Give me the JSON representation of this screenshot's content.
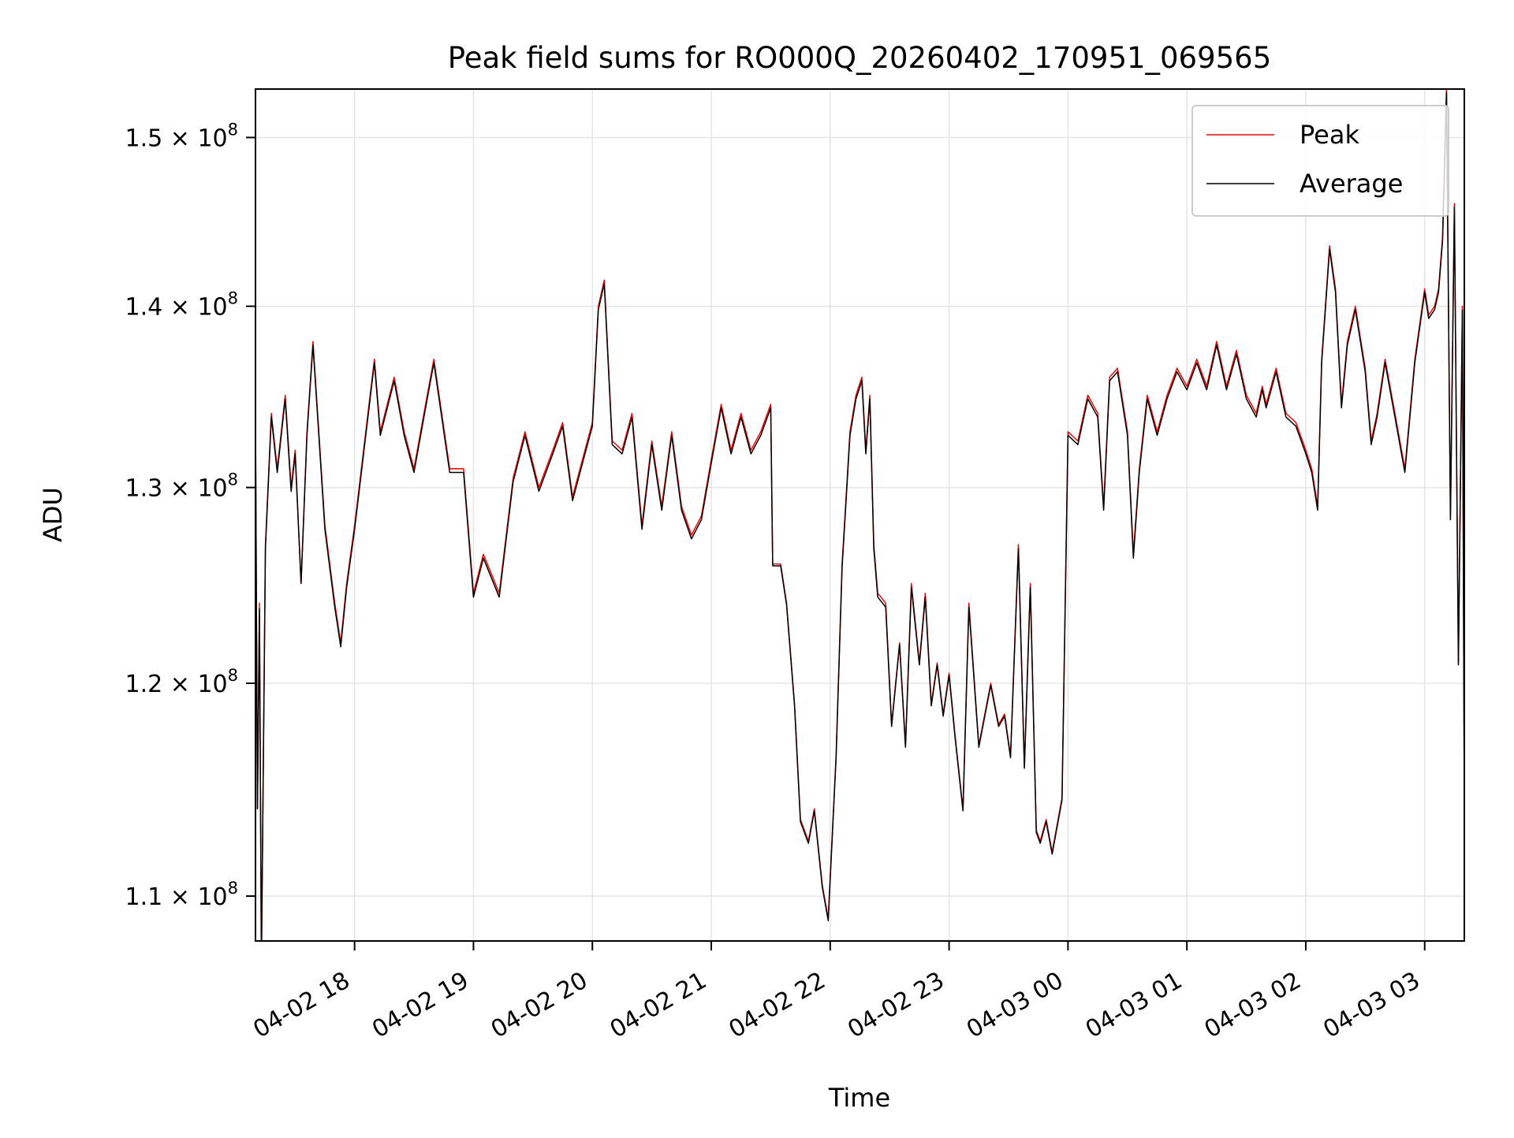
{
  "chart_data": {
    "type": "line",
    "title": "Peak field sums for RO000Q_20260402_170951_069565",
    "xlabel": "Time",
    "ylabel": "ADU",
    "y_scale": "log",
    "grid": true,
    "legend_position": "top-right",
    "xlim": [
      "2026-04-02 17:10",
      "2026-04-03 03:20"
    ],
    "ylim": [
      108000000,
      153000000
    ],
    "x_ticks": [
      {
        "value": "2026-04-02 18:00",
        "label": "04-02 18"
      },
      {
        "value": "2026-04-02 19:00",
        "label": "04-02 19"
      },
      {
        "value": "2026-04-02 20:00",
        "label": "04-02 20"
      },
      {
        "value": "2026-04-02 21:00",
        "label": "04-02 21"
      },
      {
        "value": "2026-04-02 22:00",
        "label": "04-02 22"
      },
      {
        "value": "2026-04-02 23:00",
        "label": "04-02 23"
      },
      {
        "value": "2026-04-03 00:00",
        "label": "04-03 00"
      },
      {
        "value": "2026-04-03 01:00",
        "label": "04-03 01"
      },
      {
        "value": "2026-04-03 02:00",
        "label": "04-03 02"
      },
      {
        "value": "2026-04-03 03:00",
        "label": "04-03 03"
      }
    ],
    "y_ticks": [
      {
        "value": 110000000,
        "mantissa": "1.1",
        "exponent": "8"
      },
      {
        "value": 120000000,
        "mantissa": "1.2",
        "exponent": "8"
      },
      {
        "value": 130000000,
        "mantissa": "1.3",
        "exponent": "8"
      },
      {
        "value": 140000000,
        "mantissa": "1.4",
        "exponent": "8"
      },
      {
        "value": 150000000,
        "mantissa": "1.5",
        "exponent": "8"
      }
    ],
    "x": [
      "2026-04-02 17:10",
      "2026-04-02 17:11",
      "2026-04-02 17:12",
      "2026-04-02 17:13",
      "2026-04-02 17:15",
      "2026-04-02 17:18",
      "2026-04-02 17:21",
      "2026-04-02 17:25",
      "2026-04-02 17:28",
      "2026-04-02 17:30",
      "2026-04-02 17:33",
      "2026-04-02 17:36",
      "2026-04-02 17:39",
      "2026-04-02 17:45",
      "2026-04-02 17:50",
      "2026-04-02 17:53",
      "2026-04-02 17:56",
      "2026-04-02 18:00",
      "2026-04-02 18:10",
      "2026-04-02 18:13",
      "2026-04-02 18:20",
      "2026-04-02 18:25",
      "2026-04-02 18:30",
      "2026-04-02 18:35",
      "2026-04-02 18:40",
      "2026-04-02 18:48",
      "2026-04-02 18:55",
      "2026-04-02 19:00",
      "2026-04-02 19:05",
      "2026-04-02 19:13",
      "2026-04-02 19:20",
      "2026-04-02 19:26",
      "2026-04-02 19:33",
      "2026-04-02 19:40",
      "2026-04-02 19:45",
      "2026-04-02 19:50",
      "2026-04-02 19:55",
      "2026-04-02 20:00",
      "2026-04-02 20:03",
      "2026-04-02 20:06",
      "2026-04-02 20:10",
      "2026-04-02 20:15",
      "2026-04-02 20:20",
      "2026-04-02 20:25",
      "2026-04-02 20:30",
      "2026-04-02 20:35",
      "2026-04-02 20:40",
      "2026-04-02 20:45",
      "2026-04-02 20:50",
      "2026-04-02 20:55",
      "2026-04-02 21:00",
      "2026-04-02 21:05",
      "2026-04-02 21:10",
      "2026-04-02 21:15",
      "2026-04-02 21:20",
      "2026-04-02 21:25",
      "2026-04-02 21:30",
      "2026-04-02 21:31",
      "2026-04-02 21:35",
      "2026-04-02 21:38",
      "2026-04-02 21:42",
      "2026-04-02 21:45",
      "2026-04-02 21:49",
      "2026-04-02 21:52",
      "2026-04-02 21:56",
      "2026-04-02 21:59",
      "2026-04-02 22:03",
      "2026-04-02 22:06",
      "2026-04-02 22:10",
      "2026-04-02 22:13",
      "2026-04-02 22:16",
      "2026-04-02 22:18",
      "2026-04-02 22:20",
      "2026-04-02 22:22",
      "2026-04-02 22:24",
      "2026-04-02 22:28",
      "2026-04-02 22:31",
      "2026-04-02 22:35",
      "2026-04-02 22:38",
      "2026-04-02 22:41",
      "2026-04-02 22:45",
      "2026-04-02 22:48",
      "2026-04-02 22:51",
      "2026-04-02 22:54",
      "2026-04-02 22:57",
      "2026-04-02 23:00",
      "2026-04-02 23:03",
      "2026-04-02 23:07",
      "2026-04-02 23:10",
      "2026-04-02 23:15",
      "2026-04-02 23:21",
      "2026-04-02 23:25",
      "2026-04-02 23:28",
      "2026-04-02 23:31",
      "2026-04-02 23:35",
      "2026-04-02 23:38",
      "2026-04-02 23:41",
      "2026-04-02 23:44",
      "2026-04-02 23:46",
      "2026-04-02 23:49",
      "2026-04-02 23:52",
      "2026-04-02 23:54",
      "2026-04-02 23:57",
      "2026-04-03 00:00",
      "2026-04-03 00:05",
      "2026-04-03 00:10",
      "2026-04-03 00:15",
      "2026-04-03 00:18",
      "2026-04-03 00:21",
      "2026-04-03 00:25",
      "2026-04-03 00:30",
      "2026-04-03 00:33",
      "2026-04-03 00:36",
      "2026-04-03 00:40",
      "2026-04-03 00:45",
      "2026-04-03 00:50",
      "2026-04-03 00:55",
      "2026-04-03 01:00",
      "2026-04-03 01:05",
      "2026-04-03 01:10",
      "2026-04-03 01:15",
      "2026-04-03 01:20",
      "2026-04-03 01:25",
      "2026-04-03 01:30",
      "2026-04-03 01:35",
      "2026-04-03 01:38",
      "2026-04-03 01:40",
      "2026-04-03 01:45",
      "2026-04-03 01:50",
      "2026-04-03 01:55",
      "2026-04-03 02:00",
      "2026-04-03 02:03",
      "2026-04-03 02:06",
      "2026-04-03 02:08",
      "2026-04-03 02:12",
      "2026-04-03 02:15",
      "2026-04-03 02:18",
      "2026-04-03 02:21",
      "2026-04-03 02:25",
      "2026-04-03 02:30",
      "2026-04-03 02:33",
      "2026-04-03 02:36",
      "2026-04-03 02:40",
      "2026-04-03 02:45",
      "2026-04-03 02:50",
      "2026-04-03 02:55",
      "2026-04-03 03:00",
      "2026-04-03 03:02",
      "2026-04-03 03:05",
      "2026-04-03 03:07",
      "2026-04-03 03:09",
      "2026-04-03 03:11",
      "2026-04-03 03:13",
      "2026-04-03 03:15",
      "2026-04-03 03:17",
      "2026-04-03 03:19",
      "2026-04-03 03:20"
    ],
    "series": [
      {
        "name": "Peak",
        "color": "#ff0000",
        "values": [
          134000000,
          114000000,
          124000000,
          107000000,
          127000000,
          134000000,
          131000000,
          135000000,
          130000000,
          132000000,
          125000000,
          133000000,
          138000000,
          128000000,
          124000000,
          122000000,
          125000000,
          128000000,
          137000000,
          133000000,
          136000000,
          133000000,
          131000000,
          134000000,
          137000000,
          131000000,
          131000000,
          124500000,
          126500000,
          124500000,
          130500000,
          133000000,
          130000000,
          132000000,
          133500000,
          129500000,
          131500000,
          133500000,
          140000000,
          141500000,
          132500000,
          132000000,
          134000000,
          128000000,
          132500000,
          129000000,
          133000000,
          129000000,
          127500000,
          128500000,
          131500000,
          134500000,
          132000000,
          134000000,
          132000000,
          133000000,
          134500000,
          126000000,
          126000000,
          124000000,
          119000000,
          113500000,
          112500000,
          114000000,
          110500000,
          109000000,
          116500000,
          126000000,
          133000000,
          135000000,
          136000000,
          132000000,
          135000000,
          127000000,
          124500000,
          124000000,
          118000000,
          122000000,
          117000000,
          125000000,
          121000000,
          124500000,
          119000000,
          121000000,
          118500000,
          120500000,
          117500000,
          114000000,
          124000000,
          117000000,
          120000000,
          118000000,
          118500000,
          116500000,
          127000000,
          116000000,
          125000000,
          113000000,
          112500000,
          113500000,
          112000000,
          113000000,
          114500000,
          133000000,
          132500000,
          135000000,
          134000000,
          129000000,
          136000000,
          136500000,
          133000000,
          126500000,
          131000000,
          135000000,
          133000000,
          135000000,
          136500000,
          135500000,
          137000000,
          135500000,
          138000000,
          135500000,
          137500000,
          135000000,
          134000000,
          135500000,
          134500000,
          136500000,
          134000000,
          133500000,
          132000000,
          131000000,
          129000000,
          137000000,
          143500000,
          141000000,
          134500000,
          138000000,
          140000000,
          136500000,
          132500000,
          134000000,
          137000000,
          134000000,
          131000000,
          137000000,
          141000000,
          139500000,
          140000000,
          141000000,
          144000000,
          153000000,
          128500000,
          146000000,
          121000000,
          140000000,
          114000000
        ],
        "linewidth": 1
      },
      {
        "name": "Average",
        "color": "#000000",
        "values": [
          133800000,
          114000000,
          123700000,
          107000000,
          126800000,
          133800000,
          130800000,
          134800000,
          129800000,
          131800000,
          125000000,
          132800000,
          137800000,
          127800000,
          123800000,
          121800000,
          124800000,
          127800000,
          136800000,
          132800000,
          135800000,
          132800000,
          130800000,
          133800000,
          136800000,
          130800000,
          130800000,
          124300000,
          126300000,
          124300000,
          130300000,
          132800000,
          129800000,
          131800000,
          133300000,
          129300000,
          131300000,
          133300000,
          139800000,
          141300000,
          132300000,
          131800000,
          133800000,
          127800000,
          132300000,
          128800000,
          132800000,
          128800000,
          127300000,
          128300000,
          131300000,
          134300000,
          131800000,
          133800000,
          131800000,
          132800000,
          134300000,
          125900000,
          125900000,
          123900000,
          118900000,
          113400000,
          112400000,
          113900000,
          110400000,
          108900000,
          116400000,
          125800000,
          132800000,
          134800000,
          135800000,
          131800000,
          134800000,
          126800000,
          124300000,
          123800000,
          117900000,
          121900000,
          116900000,
          124800000,
          120900000,
          124300000,
          118900000,
          120900000,
          118400000,
          120400000,
          117400000,
          113900000,
          123800000,
          116900000,
          119900000,
          117900000,
          118400000,
          116400000,
          126800000,
          115900000,
          124800000,
          112900000,
          112400000,
          113400000,
          111900000,
          112900000,
          114400000,
          132800000,
          132300000,
          134800000,
          133800000,
          128800000,
          135800000,
          136300000,
          132800000,
          126300000,
          130800000,
          134800000,
          132800000,
          134800000,
          136300000,
          135300000,
          136800000,
          135300000,
          137800000,
          135300000,
          137300000,
          134800000,
          133800000,
          135300000,
          134300000,
          136300000,
          133800000,
          133300000,
          131800000,
          130800000,
          128800000,
          136800000,
          143300000,
          140800000,
          134300000,
          137800000,
          139800000,
          136300000,
          132300000,
          133800000,
          136800000,
          133800000,
          130800000,
          136800000,
          140800000,
          139300000,
          139800000,
          140800000,
          143800000,
          152800000,
          128300000,
          145800000,
          120900000,
          139800000,
          114000000
        ],
        "linewidth": 1
      }
    ]
  }
}
